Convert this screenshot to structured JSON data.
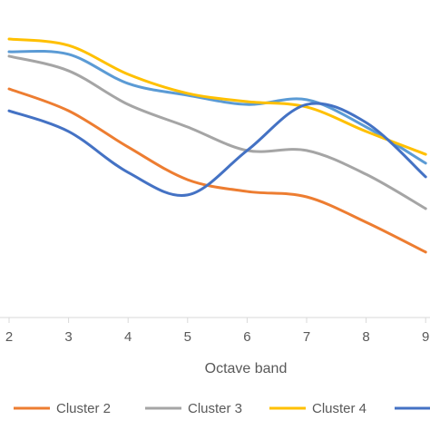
{
  "chart_data": {
    "type": "line",
    "x_label": "Octave band",
    "categories": [
      "2",
      "3",
      "4",
      "5",
      "6",
      "7",
      "8",
      "9"
    ],
    "ylim": [
      0,
      100
    ],
    "series": [
      {
        "name": null,
        "color": "#5b9bd5",
        "values": [
          83.7,
          82.9,
          73.7,
          70.0,
          67.1,
          68.6,
          60.0,
          48.6
        ]
      },
      {
        "name": "Cluster 2",
        "color": "#ed7d31",
        "values": [
          72.0,
          65.1,
          53.7,
          43.4,
          39.7,
          38.0,
          30.0,
          20.6
        ]
      },
      {
        "name": "Cluster 3",
        "color": "#a5a5a5",
        "values": [
          82.3,
          77.7,
          67.1,
          60.0,
          52.6,
          52.6,
          45.1,
          34.3
        ]
      },
      {
        "name": "Cluster 4",
        "color": "#ffc000",
        "values": [
          87.7,
          85.7,
          76.6,
          70.6,
          68.0,
          66.3,
          58.6,
          51.4
        ]
      },
      {
        "name": null,
        "color": "#4472c4",
        "values": [
          65.1,
          58.6,
          45.7,
          38.6,
          52.6,
          67.1,
          61.4,
          44.3
        ]
      }
    ]
  }
}
